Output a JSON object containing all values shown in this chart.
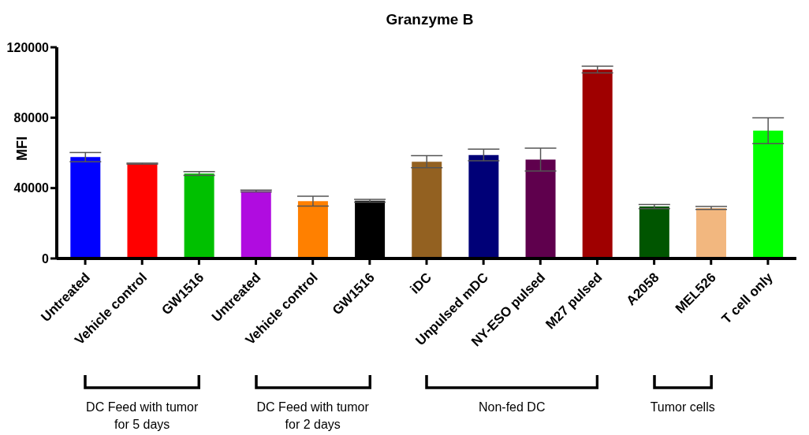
{
  "chart_data": {
    "type": "bar",
    "title": "Granzyme B",
    "ylabel": "MFI",
    "categories": [
      "Untreated",
      "Vehicle control",
      "GW1516",
      "Untreated",
      "Vehicle control",
      "GW1516",
      "iDC",
      "Unpulsed mDC",
      "NY-ESO pulsed",
      "M27 pulsed",
      "A2058",
      "MEL526",
      "T cell only"
    ],
    "values": [
      57600,
      53900,
      48300,
      38300,
      32600,
      32800,
      55000,
      58800,
      56200,
      107400,
      29500,
      28700,
      72600
    ],
    "errors": [
      2600,
      300,
      1100,
      500,
      2800,
      800,
      3400,
      3300,
      6500,
      1900,
      1200,
      800,
      7300
    ],
    "colors": [
      "#0000ff",
      "#ff0000",
      "#00c000",
      "#b00ce0",
      "#ff8000",
      "#000000",
      "#936121",
      "#000077",
      "#5f004d",
      "#9f0000",
      "#005500",
      "#f2b77f",
      "#00ff00"
    ],
    "ylim": [
      0,
      120000
    ],
    "yticks": [
      0,
      40000,
      80000,
      120000
    ],
    "grid": false,
    "legend": false,
    "annotations": [
      "DC Feed with tumor for 5 days",
      "DC Feed with tumor for 2 days",
      "Non-fed DC",
      "Tumor cells"
    ]
  }
}
